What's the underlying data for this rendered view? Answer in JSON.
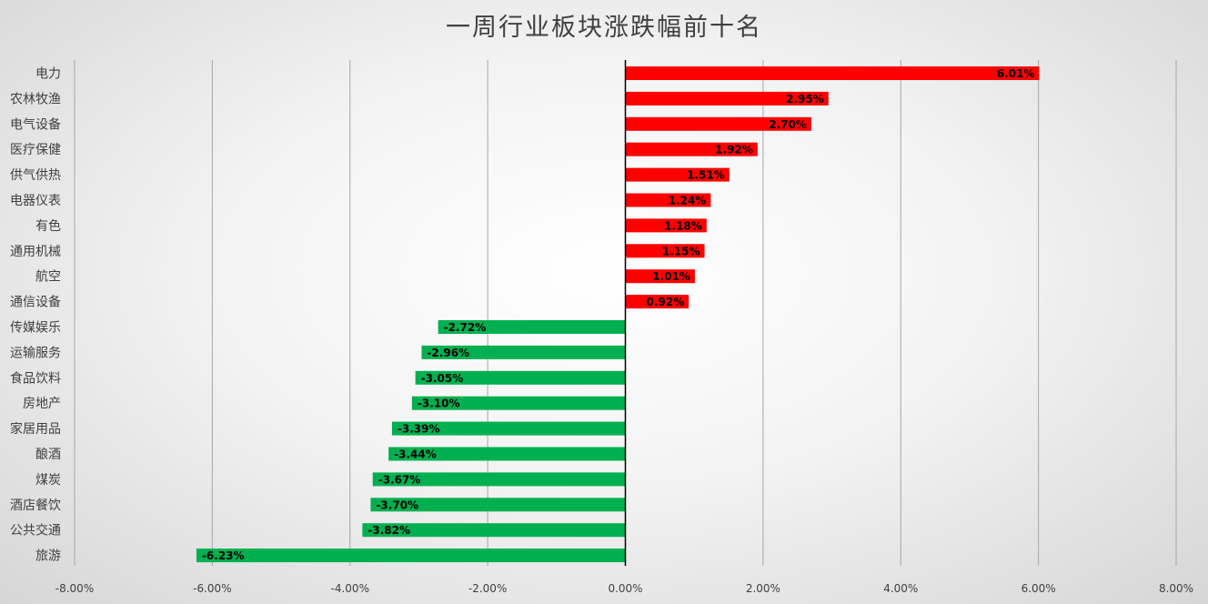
{
  "chart_data": {
    "type": "bar",
    "orientation": "horizontal",
    "title": "一周行业板块涨跌幅前十名",
    "categories": [
      "电力",
      "农林牧渔",
      "电气设备",
      "医疗保健",
      "供气供热",
      "电器仪表",
      "有色",
      "通用机械",
      "航空",
      "通信设备",
      "传媒娱乐",
      "运输服务",
      "食品饮料",
      "房地产",
      "家居用品",
      "酿酒",
      "煤炭",
      "酒店餐饮",
      "公共交通",
      "旅游"
    ],
    "values": [
      6.01,
      2.95,
      2.7,
      1.92,
      1.51,
      1.24,
      1.18,
      1.15,
      1.01,
      0.92,
      -2.72,
      -2.96,
      -3.05,
      -3.1,
      -3.39,
      -3.44,
      -3.67,
      -3.7,
      -3.82,
      -6.23
    ],
    "data_labels": [
      "6.01%",
      "2.95%",
      "2.70%",
      "1.92%",
      "1.51%",
      "1.24%",
      "1.18%",
      "1.15%",
      "1.01%",
      "0.92%",
      "-2.72%",
      "-2.96%",
      "-3.05%",
      "-3.10%",
      "-3.39%",
      "-3.44%",
      "-3.67%",
      "-3.70%",
      "-3.82%",
      "-6.23%"
    ],
    "unit": "%",
    "xlim": [
      -8,
      8
    ],
    "x_ticks": [
      -8,
      -6,
      -4,
      -2,
      0,
      2,
      4,
      6,
      8
    ],
    "x_tick_labels": [
      "-8.00%",
      "-6.00%",
      "-4.00%",
      "-2.00%",
      "0.00%",
      "2.00%",
      "4.00%",
      "6.00%",
      "8.00%"
    ],
    "grid": "vertical",
    "legend": "none",
    "colors": {
      "positive": "#ff0000",
      "negative": "#00b050",
      "gridline": "#a6a6a6",
      "zero_axis": "#000000",
      "text": "#404040"
    }
  }
}
